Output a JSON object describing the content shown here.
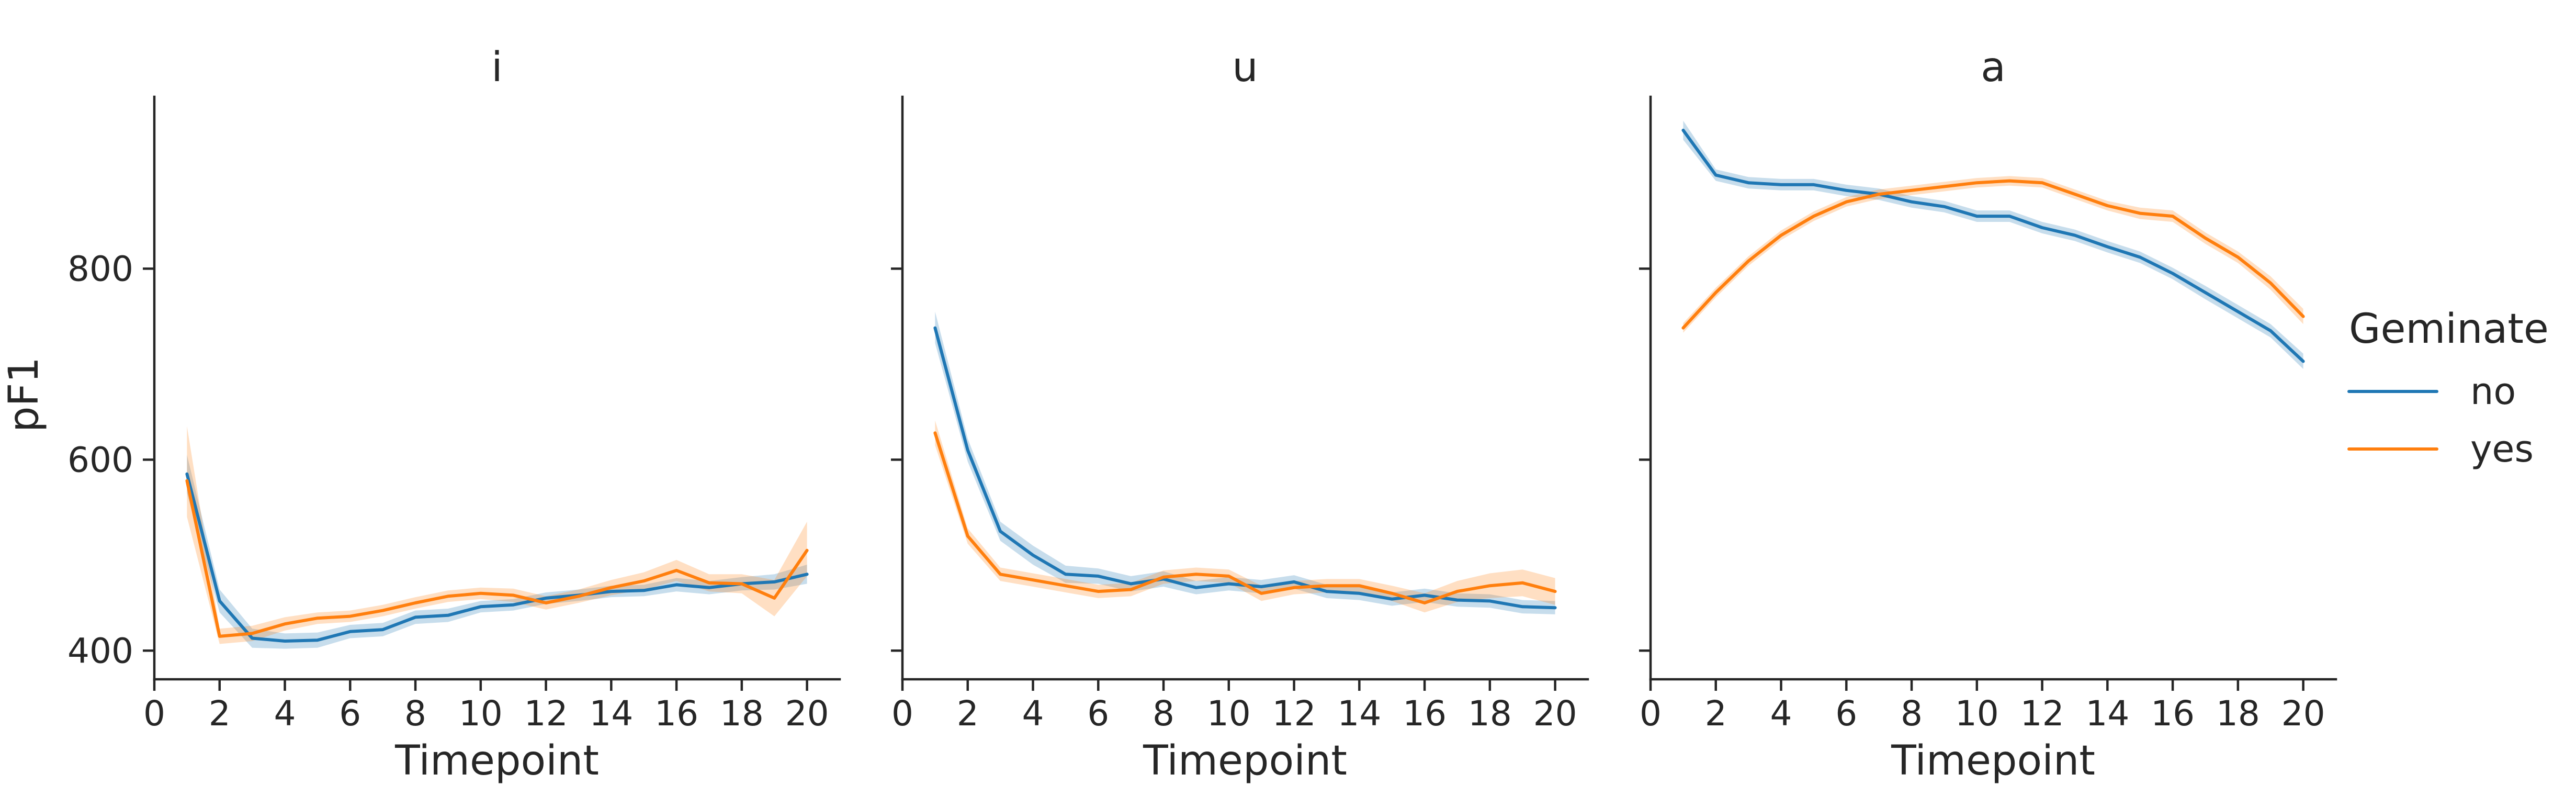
{
  "chart_data": {
    "type": "line",
    "x": [
      1,
      2,
      3,
      4,
      5,
      6,
      7,
      8,
      9,
      10,
      11,
      12,
      13,
      14,
      15,
      16,
      17,
      18,
      19,
      20
    ],
    "xlabel": "Timepoint",
    "ylabel": "pF1",
    "xlim": [
      0,
      21
    ],
    "ylim": [
      370,
      980
    ],
    "xticks": [
      0,
      2,
      4,
      6,
      8,
      10,
      12,
      14,
      16,
      18,
      20
    ],
    "yticks": [
      400,
      600,
      800
    ],
    "shared_y": true,
    "legend": {
      "title": "Geminate",
      "placement": "right",
      "entries": [
        "no",
        "yes"
      ]
    },
    "colors": {
      "no": "#1f77b4",
      "yes": "#ff7f0e"
    },
    "panels": [
      {
        "title": "i",
        "series": [
          {
            "name": "no",
            "values": [
              585,
              452,
              413,
              410,
              411,
              420,
              422,
              435,
              437,
              446,
              448,
              455,
              458,
              462,
              463,
              469,
              466,
              470,
              472,
              480
            ],
            "ci_low": [
              565,
              440,
              403,
              402,
              403,
              413,
              415,
              428,
              430,
              440,
              442,
              449,
              452,
              456,
              457,
              462,
              459,
              463,
              464,
              470
            ],
            "ci_high": [
              605,
              464,
              423,
              418,
              419,
              427,
              429,
              442,
              444,
              452,
              454,
              461,
              464,
              468,
              469,
              476,
              473,
              477,
              480,
              490
            ]
          },
          {
            "name": "yes",
            "values": [
              578,
              415,
              418,
              428,
              434,
              436,
              442,
              450,
              457,
              460,
              458,
              450,
              457,
              466,
              473,
              484,
              471,
              470,
              455,
              505
            ],
            "ci_low": [
              540,
              407,
              410,
              421,
              428,
              430,
              436,
              444,
              451,
              454,
              451,
              443,
              450,
              458,
              464,
              473,
              462,
              460,
              436,
              478
            ],
            "ci_high": [
              635,
              423,
              426,
              435,
              440,
              442,
              448,
              456,
              463,
              466,
              465,
              457,
              464,
              474,
              482,
              495,
              480,
              480,
              474,
              535
            ]
          }
        ]
      },
      {
        "title": "u",
        "series": [
          {
            "name": "no",
            "values": [
              738,
              610,
              525,
              500,
              480,
              478,
              470,
              475,
              466,
              470,
              467,
              472,
              462,
              460,
              454,
              458,
              453,
              452,
              446,
              445
            ],
            "ci_low": [
              722,
              598,
              515,
              490,
              471,
              470,
              462,
              467,
              459,
              463,
              460,
              465,
              455,
              453,
              447,
              451,
              446,
              445,
              439,
              438
            ],
            "ci_high": [
              755,
              622,
              535,
              510,
              489,
              486,
              478,
              483,
              473,
              477,
              474,
              479,
              469,
              467,
              461,
              465,
              460,
              459,
              453,
              452
            ]
          },
          {
            "name": "yes",
            "values": [
              628,
              520,
              480,
              474,
              468,
              462,
              464,
              477,
              480,
              478,
              460,
              466,
              468,
              468,
              460,
              450,
              462,
              468,
              471,
              462
            ],
            "ci_low": [
              615,
              512,
              473,
              467,
              461,
              455,
              457,
              470,
              473,
              471,
              452,
              459,
              461,
              461,
              452,
              440,
              451,
              455,
              457,
              448
            ],
            "ci_high": [
              641,
              528,
              487,
              481,
              475,
              469,
              471,
              484,
              487,
              485,
              468,
              473,
              475,
              475,
              468,
              460,
              473,
              481,
              485,
              476
            ]
          }
        ]
      },
      {
        "title": "a",
        "series": [
          {
            "name": "no",
            "values": [
              945,
              898,
              890,
              888,
              888,
              882,
              878,
              870,
              865,
              855,
              855,
              843,
              835,
              823,
              812,
              795,
              775,
              755,
              735,
              703
            ],
            "ci_low": [
              935,
              892,
              884,
              882,
              882,
              876,
              872,
              864,
              859,
              849,
              849,
              837,
              829,
              817,
              806,
              789,
              768,
              748,
              728,
              695
            ],
            "ci_high": [
              955,
              904,
              896,
              894,
              894,
              888,
              884,
              876,
              871,
              861,
              861,
              849,
              841,
              829,
              818,
              801,
              782,
              762,
              742,
              711
            ]
          },
          {
            "name": "yes",
            "values": [
              738,
              775,
              808,
              835,
              855,
              870,
              878,
              882,
              886,
              890,
              892,
              890,
              878,
              866,
              858,
              855,
              832,
              812,
              785,
              750
            ],
            "ci_low": [
              733,
              770,
              803,
              830,
              850,
              865,
              873,
              877,
              881,
              885,
              887,
              885,
              873,
              861,
              852,
              849,
              826,
              806,
              778,
              742
            ],
            "ci_high": [
              743,
              780,
              813,
              840,
              860,
              875,
              883,
              887,
              891,
              895,
              897,
              895,
              883,
              871,
              864,
              861,
              838,
              818,
              792,
              758
            ]
          }
        ]
      }
    ]
  }
}
